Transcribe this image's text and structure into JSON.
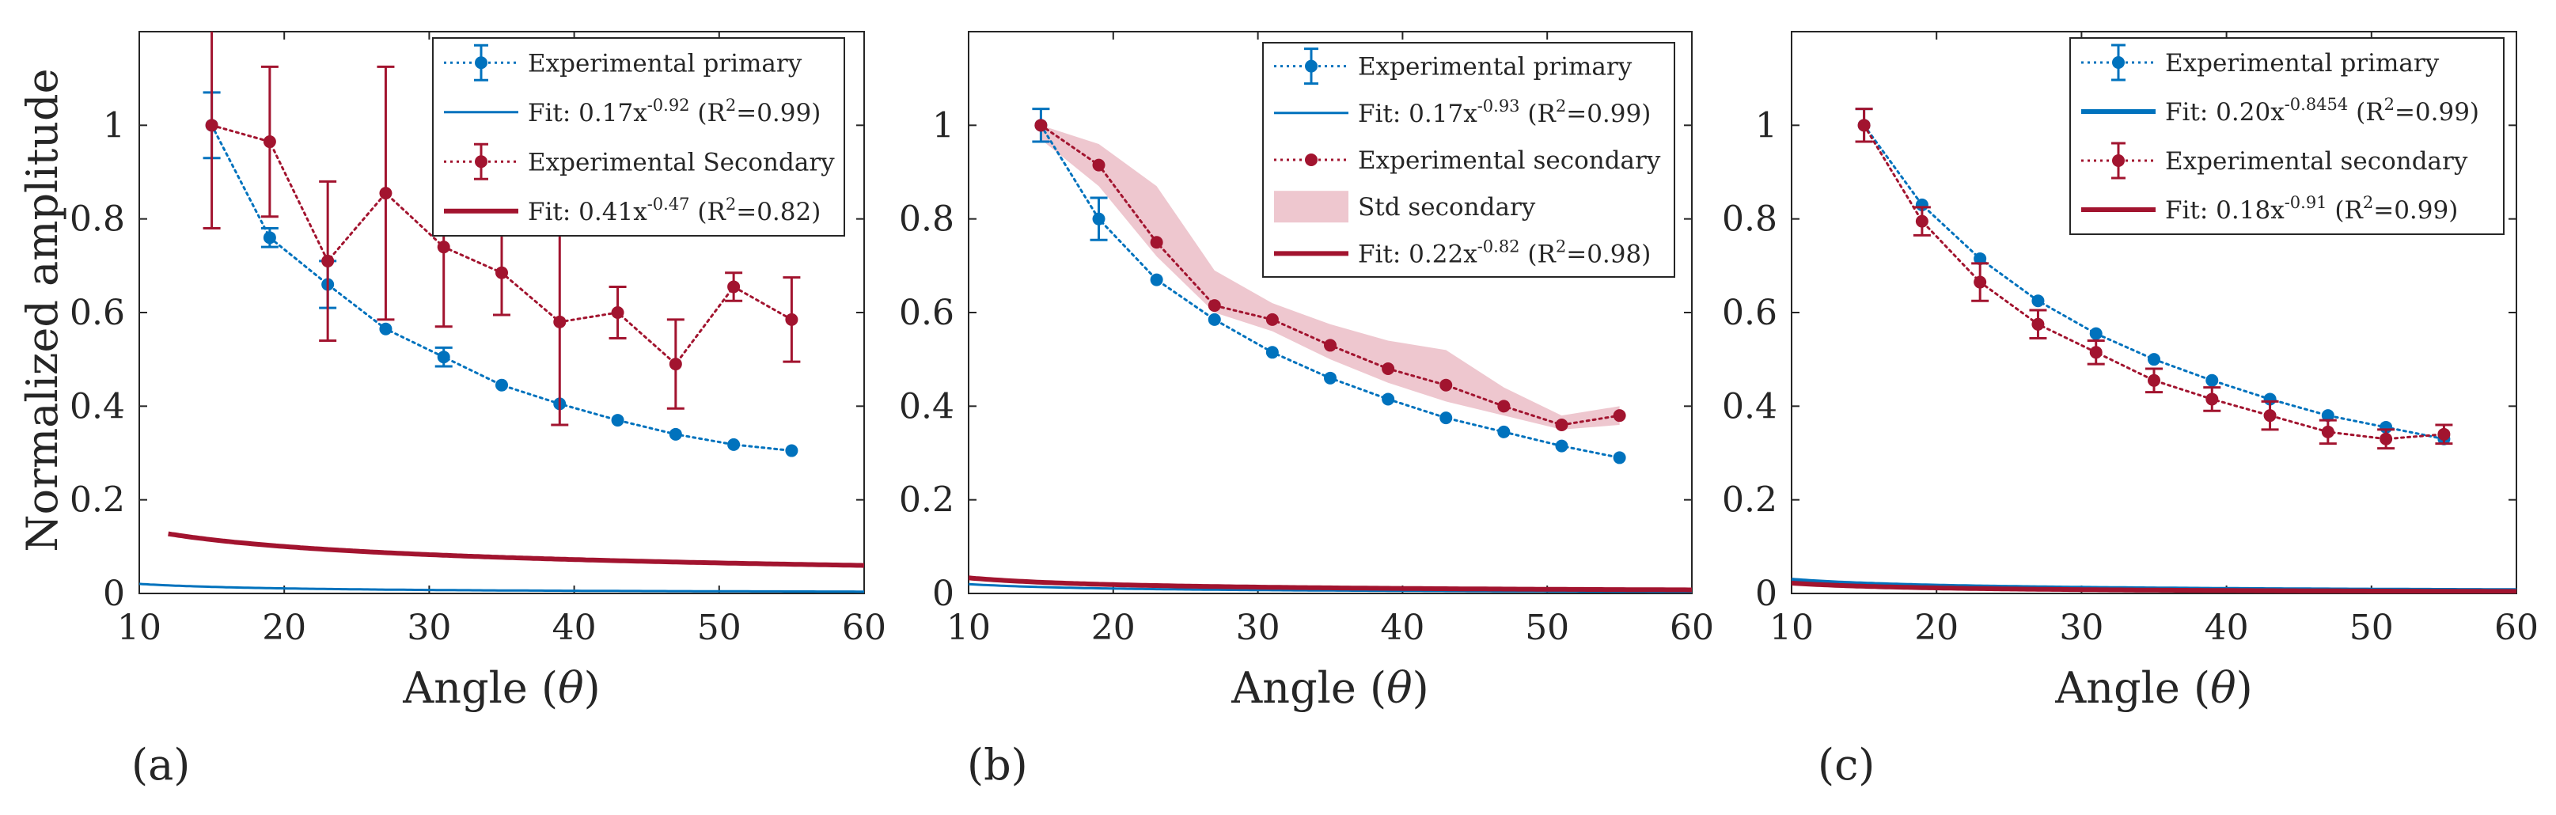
{
  "colors": {
    "primary": "#0072bd",
    "secondary": "#a2142f",
    "band": "#e8b4bf",
    "axis": "#262626"
  },
  "shared": {
    "ylabel": "Normalized amplitude",
    "xlabel": "Angle (",
    "xlabel_symbol": "θ",
    "xlabel_close": ")"
  },
  "chart_data": [
    {
      "type": "line",
      "panel_label": "(a)",
      "xlabel": "Angle (θ)",
      "ylabel": "Normalized amplitude",
      "xlim": [
        10,
        60
      ],
      "ylim": [
        0,
        1.2
      ],
      "xticks": [
        "10",
        "20",
        "30",
        "40",
        "50",
        "60"
      ],
      "yticks": [
        "0",
        "0.2",
        "0.4",
        "0.6",
        "0.8",
        "1"
      ],
      "legend_position": "top-right",
      "series": [
        {
          "name": "Experimental primary",
          "role": "primary-exp",
          "x": [
            15,
            19,
            23,
            27,
            31,
            35,
            39,
            43,
            47,
            51,
            55
          ],
          "y": [
            1.0,
            0.76,
            0.66,
            0.565,
            0.505,
            0.445,
            0.405,
            0.37,
            0.34,
            0.318,
            0.305
          ],
          "err": [
            0.07,
            0.02,
            0.05,
            0.0,
            0.02,
            0.0,
            0.0,
            0.0,
            0.0,
            0.0,
            0.0
          ]
        },
        {
          "name": "Fit",
          "role": "primary-fit",
          "legend": {
            "prefix": "Fit: 0.17x",
            "exp": "-0.92",
            "r_open": " (R",
            "r_sup": "2",
            "r_close": "=0.99)"
          },
          "a": 0.17,
          "b": -0.92,
          "x_start": 10,
          "x_end": 60
        },
        {
          "name": "Experimental Secondary",
          "role": "secondary-exp",
          "x": [
            15,
            19,
            23,
            27,
            31,
            35,
            39,
            43,
            47,
            51,
            55
          ],
          "y": [
            1.0,
            0.965,
            0.71,
            0.855,
            0.74,
            0.685,
            0.58,
            0.6,
            0.49,
            0.655,
            0.585
          ],
          "err": [
            0.22,
            0.16,
            0.17,
            0.27,
            0.17,
            0.09,
            0.22,
            0.055,
            0.095,
            0.03,
            0.09
          ]
        },
        {
          "name": "Fit",
          "role": "secondary-fit",
          "legend": {
            "prefix": "Fit: 0.41x",
            "exp": "-0.47",
            "r_open": " (R",
            "r_sup": "2",
            "r_close": "=0.82)"
          },
          "a": 0.41,
          "b": -0.47,
          "x_start": 12,
          "x_end": 60
        }
      ]
    },
    {
      "type": "line",
      "panel_label": "(b)",
      "xlabel": "Angle (θ)",
      "xlim": [
        10,
        60
      ],
      "ylim": [
        0,
        1.2
      ],
      "xticks": [
        "10",
        "20",
        "30",
        "40",
        "50",
        "60"
      ],
      "yticks": [
        "0",
        "0.2",
        "0.4",
        "0.6",
        "0.8",
        "1"
      ],
      "legend_position": "top-right",
      "series": [
        {
          "name": "Experimental primary",
          "role": "primary-exp",
          "x": [
            15,
            19,
            23,
            27,
            31,
            35,
            39,
            43,
            47,
            51,
            55
          ],
          "y": [
            1.0,
            0.8,
            0.67,
            0.585,
            0.515,
            0.46,
            0.415,
            0.375,
            0.345,
            0.315,
            0.29
          ],
          "err": [
            0.035,
            0.045,
            0.0,
            0.0,
            0.0,
            0.0,
            0.0,
            0.0,
            0.0,
            0.0,
            0.0
          ]
        },
        {
          "name": "Fit",
          "role": "primary-fit",
          "legend": {
            "prefix": "Fit: 0.17x",
            "exp": "-0.93",
            "r_open": " (R",
            "r_sup": "2",
            "r_close": "=0.99)"
          },
          "a": 0.17,
          "b": -0.93,
          "x_start": 10,
          "x_end": 60
        },
        {
          "name": "Experimental secondary",
          "role": "secondary-exp",
          "x": [
            15,
            19,
            23,
            27,
            31,
            35,
            39,
            43,
            47,
            51,
            55
          ],
          "y": [
            1.0,
            0.915,
            0.75,
            0.615,
            0.585,
            0.53,
            0.48,
            0.445,
            0.4,
            0.36,
            0.38
          ],
          "err": []
        },
        {
          "name": "Std secondary",
          "role": "band",
          "x": [
            15,
            19,
            23,
            27,
            31,
            35,
            39,
            43,
            47,
            51,
            55
          ],
          "upper": [
            1.0,
            0.96,
            0.87,
            0.69,
            0.62,
            0.575,
            0.54,
            0.52,
            0.44,
            0.38,
            0.4
          ],
          "lower": [
            0.97,
            0.87,
            0.72,
            0.6,
            0.56,
            0.5,
            0.45,
            0.41,
            0.38,
            0.35,
            0.36
          ]
        },
        {
          "name": "Fit",
          "role": "secondary-fit",
          "legend": {
            "prefix": "Fit: 0.22x",
            "exp": "-0.82",
            "r_open": " (R",
            "r_sup": "2",
            "r_close": "=0.98)"
          },
          "a": 0.22,
          "b": -0.82,
          "x_start": 10,
          "x_end": 60
        }
      ]
    },
    {
      "type": "line",
      "panel_label": "(c)",
      "xlabel": "Angle (θ)",
      "xlim": [
        10,
        60
      ],
      "ylim": [
        0,
        1.2
      ],
      "xticks": [
        "10",
        "20",
        "30",
        "40",
        "50",
        "60"
      ],
      "yticks": [
        "0",
        "0.2",
        "0.4",
        "0.6",
        "0.8",
        "1"
      ],
      "legend_position": "top-right",
      "series": [
        {
          "name": "Experimental primary",
          "role": "primary-exp",
          "x": [
            15,
            19,
            23,
            27,
            31,
            35,
            39,
            43,
            47,
            51,
            55
          ],
          "y": [
            1.0,
            0.83,
            0.715,
            0.625,
            0.555,
            0.5,
            0.455,
            0.415,
            0.38,
            0.355,
            0.33
          ],
          "err": [
            0.035,
            0.0,
            0.0,
            0.0,
            0.0,
            0.0,
            0.0,
            0.0,
            0.0,
            0.0,
            0.0
          ]
        },
        {
          "name": "Fit",
          "role": "primary-fit",
          "bold": true,
          "legend": {
            "prefix": "Fit: 0.20x",
            "exp": "-0.8454",
            "r_open": " (R",
            "r_sup": "2",
            "r_close": "=0.99)"
          },
          "a": 0.2,
          "b": -0.8454,
          "x_start": 10,
          "x_end": 60
        },
        {
          "name": "Experimental secondary",
          "role": "secondary-exp",
          "x": [
            15,
            19,
            23,
            27,
            31,
            35,
            39,
            43,
            47,
            51,
            55
          ],
          "y": [
            1.0,
            0.795,
            0.665,
            0.575,
            0.515,
            0.455,
            0.415,
            0.38,
            0.345,
            0.33,
            0.34
          ],
          "err": [
            0.035,
            0.03,
            0.04,
            0.03,
            0.025,
            0.025,
            0.025,
            0.03,
            0.025,
            0.02,
            0.02
          ]
        },
        {
          "name": "Fit",
          "role": "secondary-fit",
          "legend": {
            "prefix": "Fit: 0.18x",
            "exp": "-0.91",
            "r_open": " (R",
            "r_sup": "2",
            "r_close": "=0.99)"
          },
          "a": 0.18,
          "b": -0.91,
          "x_start": 10,
          "x_end": 60
        }
      ]
    }
  ]
}
